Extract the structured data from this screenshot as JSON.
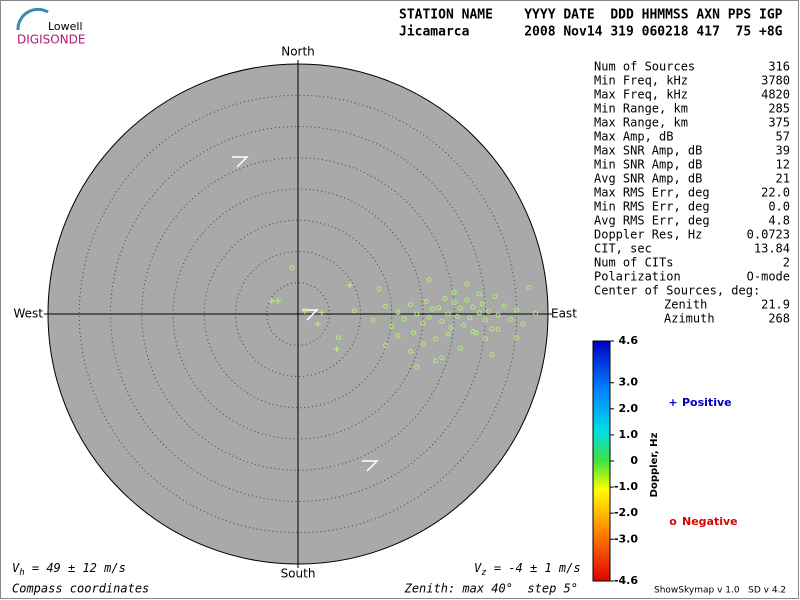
{
  "logo": {
    "line1": "Lowell",
    "line2": "DIGISONDE"
  },
  "header": {
    "labels": "STATION NAME    YYYY DATE  DDD HHMMSS AXN PPS IGP",
    "values": "Jicamarca       2008 Nov14 319 060218 417  75 +8G"
  },
  "stats": [
    {
      "label": "Num of Sources",
      "value": "316"
    },
    {
      "label": "Min Freq, kHz",
      "value": "3780"
    },
    {
      "label": "Max Freq, kHz",
      "value": "4820"
    },
    {
      "label": "Min Range, km",
      "value": "285"
    },
    {
      "label": "Max Range, km",
      "value": "375"
    },
    {
      "label": "Max Amp, dB",
      "value": "57"
    },
    {
      "label": "Max SNR Amp, dB",
      "value": "39"
    },
    {
      "label": "Min SNR Amp, dB",
      "value": "12"
    },
    {
      "label": "Avg SNR Amp, dB",
      "value": "21"
    },
    {
      "label": "Max RMS Err, deg",
      "value": "22.0"
    },
    {
      "label": "Min RMS Err, deg",
      "value": "0.0"
    },
    {
      "label": "Avg RMS Err, deg",
      "value": "4.8"
    },
    {
      "label": "Doppler Res, Hz",
      "value": "0.0723"
    },
    {
      "label": "CIT, sec",
      "value": "13.84"
    },
    {
      "label": "Num of CITs",
      "value": "2"
    },
    {
      "label": "Polarization",
      "value": "O-mode"
    }
  ],
  "center": {
    "title": "Center of Sources, deg:",
    "zenith_label": "Zenith",
    "zenith": "21.9",
    "azimuth_label": "Azimuth",
    "azimuth": "268"
  },
  "footer": {
    "vh_symbol": "V",
    "vh_sub": "h",
    "vh_text": " = 49 ± 12 m/s",
    "vz_symbol": "V",
    "vz_sub": "z",
    "vz_text": " = -4 ± 1 m/s",
    "coords": "Compass coordinates",
    "zenith": "Zenith: max 40°  step 5°",
    "version": "ShowSkymap v 1.0   SD v 4.2"
  },
  "chart_data": {
    "type": "skymap",
    "directions": {
      "north": "North",
      "south": "South",
      "east": "East",
      "west": "West"
    },
    "xlim": [
      -40,
      40
    ],
    "ylim": [
      -40,
      40
    ],
    "rticks": [
      5,
      10,
      15,
      20,
      25,
      30,
      35
    ],
    "grid": true,
    "series": [
      {
        "name": "Positive",
        "marker": "plus",
        "color": "#b0f080",
        "legend_color": "#0000c0",
        "legend_symbol": "+",
        "x": [
          -4.2,
          -3.2,
          1.1,
          3.2,
          6.2,
          8.3,
          3.8
        ],
        "y": [
          2.1,
          2.1,
          0.5,
          -1.6,
          -5.6,
          4.6,
          0.2
        ]
      },
      {
        "name": "Negative",
        "marker": "circle",
        "color": "#b0f070",
        "legend_color": "#e00000",
        "legend_symbol": "o",
        "x": [
          9,
          12,
          14,
          15,
          16,
          17,
          18,
          18.5,
          19,
          20,
          20.5,
          21,
          21.5,
          22,
          22.5,
          23,
          23.5,
          24,
          24.5,
          25,
          25.5,
          26,
          26.5,
          27,
          27.5,
          28,
          28.5,
          29,
          29.5,
          30,
          30.5,
          31,
          31.5,
          32,
          33,
          34,
          35,
          36,
          37,
          38,
          14,
          16,
          18,
          20,
          22,
          24,
          26,
          28,
          30,
          32,
          13,
          21,
          25,
          27,
          29,
          19,
          23,
          31,
          35,
          -1,
          6.5
        ],
        "y": [
          0.5,
          -1,
          1.2,
          -2,
          0.3,
          -0.8,
          1.5,
          -3,
          0,
          -1.5,
          2,
          -0.5,
          0.8,
          -4,
          1,
          -1.2,
          2.5,
          0,
          -2.2,
          1.8,
          -0.4,
          0.9,
          -1.8,
          2.2,
          -0.6,
          1.1,
          -3,
          0.2,
          1.6,
          -1,
          0.4,
          -2.4,
          2.8,
          -0.2,
          1.3,
          -0.9,
          0.6,
          -1.6,
          4.2,
          0.1,
          -5,
          -3.5,
          -6,
          -4.8,
          -7.5,
          -3.2,
          -5.5,
          -2.8,
          -4,
          -2.5,
          4,
          5.5,
          3.5,
          4.8,
          3.2,
          -8.5,
          -7,
          -6.5,
          -3.8,
          7.4,
          -3.8
        ]
      }
    ],
    "colorbar": {
      "label": "Doppler, Hz",
      "ylim": [
        -4.6,
        4.6
      ],
      "yticks": [
        {
          "value": 4.6,
          "label": "4.6"
        },
        {
          "value": 3,
          "label": "3.0"
        },
        {
          "value": 2,
          "label": "2.0"
        },
        {
          "value": 1,
          "label": "1.0"
        },
        0,
        {
          "value": -1,
          "label": "-1.0"
        },
        {
          "value": -2,
          "label": "-2.0"
        },
        {
          "value": -3,
          "label": "-3.0"
        },
        {
          "value": -4.6,
          "label": "-4.6"
        }
      ]
    }
  }
}
